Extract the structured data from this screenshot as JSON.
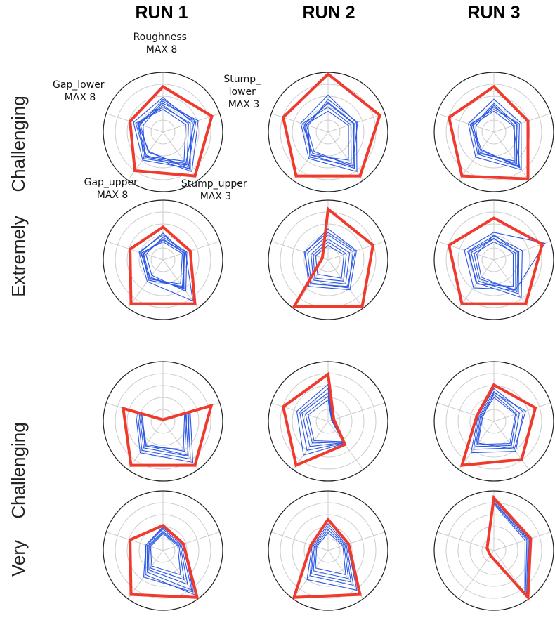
{
  "figure": {
    "columns": [
      "RUN 1",
      "RUN 2",
      "RUN 3"
    ],
    "groups": [
      {
        "word1": "Extremely",
        "word2": "Challenging"
      },
      {
        "word1": "Very",
        "word2": "Challenging"
      }
    ]
  },
  "axis_labels": [
    [
      "Roughness",
      "MAX 8"
    ],
    [
      "Stump_",
      "lower",
      "MAX 3"
    ],
    [
      "Stump_upper",
      "MAX 3"
    ],
    [
      "Gap_upper",
      "MAX 8"
    ],
    [
      "Gap_lower",
      "MAX 8"
    ]
  ],
  "colors": {
    "highlight": "#f03a2e",
    "trials": "#2b57e6",
    "grid": "#cccccc",
    "frame": "#222222"
  },
  "chart_data": {
    "type": "radar",
    "axes": [
      "Roughness",
      "Stump_lower",
      "Stump_upper",
      "Gap_upper",
      "Gap_lower"
    ],
    "max": [
      8,
      3,
      3,
      8,
      8
    ],
    "note_values": "normalized to axis maximum (0-1)",
    "panels": [
      {
        "row": 0,
        "col": 0,
        "highlight": [
          0.76,
          0.86,
          0.91,
          0.8,
          0.58
        ],
        "trials": [
          [
            0.58,
            0.52,
            0.75,
            0.58,
            0.52
          ],
          [
            0.48,
            0.62,
            0.82,
            0.48,
            0.45
          ],
          [
            0.45,
            0.45,
            0.68,
            0.55,
            0.42
          ],
          [
            0.55,
            0.58,
            0.72,
            0.42,
            0.4
          ],
          [
            0.38,
            0.4,
            0.6,
            0.5,
            0.48
          ],
          [
            0.52,
            0.55,
            0.65,
            0.52,
            0.35
          ],
          [
            0.42,
            0.48,
            0.78,
            0.4,
            0.44
          ]
        ]
      },
      {
        "row": 0,
        "col": 1,
        "highlight": [
          0.97,
          0.91,
          0.91,
          0.91,
          0.79
        ],
        "trials": [
          [
            0.62,
            0.5,
            0.82,
            0.55,
            0.48
          ],
          [
            0.48,
            0.45,
            0.75,
            0.48,
            0.42
          ],
          [
            0.55,
            0.52,
            0.7,
            0.52,
            0.35
          ],
          [
            0.42,
            0.4,
            0.66,
            0.44,
            0.45
          ],
          [
            0.35,
            0.36,
            0.58,
            0.48,
            0.4
          ],
          [
            0.5,
            0.46,
            0.72,
            0.4,
            0.38
          ]
        ]
      },
      {
        "row": 0,
        "col": 2,
        "highlight": [
          0.76,
          0.6,
          0.97,
          0.91,
          0.79
        ],
        "trials": [
          [
            0.55,
            0.48,
            0.78,
            0.52,
            0.45
          ],
          [
            0.42,
            0.42,
            0.72,
            0.46,
            0.4
          ],
          [
            0.48,
            0.4,
            0.65,
            0.42,
            0.36
          ],
          [
            0.38,
            0.45,
            0.7,
            0.38,
            0.42
          ],
          [
            0.45,
            0.36,
            0.6,
            0.44,
            0.32
          ],
          [
            0.35,
            0.34,
            0.74,
            0.36,
            0.38
          ]
        ]
      },
      {
        "row": 1,
        "col": 0,
        "highlight": [
          0.55,
          0.48,
          0.91,
          0.91,
          0.58
        ],
        "trials": [
          [
            0.42,
            0.4,
            0.85,
            0.45,
            0.42
          ],
          [
            0.35,
            0.38,
            0.55,
            0.42,
            0.35
          ],
          [
            0.45,
            0.36,
            0.6,
            0.36,
            0.4
          ],
          [
            0.3,
            0.34,
            0.5,
            0.4,
            0.38
          ],
          [
            0.38,
            0.42,
            0.65,
            0.32,
            0.3
          ],
          [
            0.33,
            0.38,
            0.58,
            0.38,
            0.34
          ]
        ]
      },
      {
        "row": 1,
        "col": 1,
        "highlight": [
          0.85,
          0.79,
          0.97,
          0.97,
          0.1
        ],
        "trials": [
          [
            0.52,
            0.5,
            0.62,
            0.55,
            0.4
          ],
          [
            0.42,
            0.44,
            0.58,
            0.48,
            0.36
          ],
          [
            0.35,
            0.38,
            0.5,
            0.42,
            0.3
          ],
          [
            0.3,
            0.32,
            0.44,
            0.38,
            0.26
          ],
          [
            0.24,
            0.28,
            0.38,
            0.3,
            0.22
          ],
          [
            0.46,
            0.48,
            0.55,
            0.5,
            0.42
          ]
        ]
      },
      {
        "row": 1,
        "col": 2,
        "highlight": [
          0.7,
          0.85,
          0.91,
          0.91,
          0.79
        ],
        "trials": [
          [
            0.46,
            0.9,
            0.62,
            0.58,
            0.52
          ],
          [
            0.4,
            0.5,
            0.78,
            0.48,
            0.46
          ],
          [
            0.35,
            0.44,
            0.7,
            0.44,
            0.4
          ],
          [
            0.3,
            0.38,
            0.62,
            0.4,
            0.35
          ],
          [
            0.42,
            0.42,
            0.66,
            0.36,
            0.3
          ],
          [
            0.36,
            0.34,
            0.55,
            0.5,
            0.44
          ]
        ]
      },
      {
        "row": 2,
        "col": 0,
        "highlight": [
          0.03,
          0.85,
          0.91,
          0.91,
          0.7
        ],
        "trials": [
          [
            0.03,
            0.48,
            0.85,
            0.65,
            0.48
          ],
          [
            0.03,
            0.44,
            0.78,
            0.6,
            0.45
          ],
          [
            0.03,
            0.4,
            0.72,
            0.55,
            0.42
          ],
          [
            0.03,
            0.46,
            0.7,
            0.5,
            0.4
          ],
          [
            0.03,
            0.42,
            0.62,
            0.48,
            0.38
          ],
          [
            0.03,
            0.38,
            0.58,
            0.52,
            0.36
          ]
        ]
      },
      {
        "row": 2,
        "col": 1,
        "highlight": [
          0.79,
          0.1,
          0.48,
          0.91,
          0.79
        ],
        "trials": [
          [
            0.62,
            0.08,
            0.46,
            0.7,
            0.55
          ],
          [
            0.55,
            0.08,
            0.45,
            0.6,
            0.5
          ],
          [
            0.48,
            0.07,
            0.44,
            0.52,
            0.46
          ],
          [
            0.42,
            0.07,
            0.43,
            0.45,
            0.4
          ],
          [
            0.36,
            0.06,
            0.42,
            0.4,
            0.35
          ]
        ]
      },
      {
        "row": 2,
        "col": 2,
        "highlight": [
          0.61,
          0.73,
          0.79,
          0.91,
          0.3
        ],
        "trials": [
          [
            0.55,
            0.52,
            0.62,
            0.65,
            0.28
          ],
          [
            0.5,
            0.45,
            0.55,
            0.58,
            0.26
          ],
          [
            0.45,
            0.4,
            0.5,
            0.52,
            0.24
          ],
          [
            0.4,
            0.38,
            0.46,
            0.48,
            0.22
          ],
          [
            0.48,
            0.56,
            0.58,
            0.45,
            0.2
          ]
        ]
      },
      {
        "row": 3,
        "col": 0,
        "highlight": [
          0.42,
          0.36,
          0.97,
          0.91,
          0.58
        ],
        "trials": [
          [
            0.4,
            0.34,
            0.92,
            0.5,
            0.3
          ],
          [
            0.36,
            0.32,
            0.82,
            0.45,
            0.28
          ],
          [
            0.32,
            0.3,
            0.7,
            0.4,
            0.26
          ],
          [
            0.3,
            0.28,
            0.6,
            0.36,
            0.24
          ],
          [
            0.28,
            0.26,
            0.5,
            0.32,
            0.22
          ],
          [
            0.38,
            0.36,
            0.86,
            0.55,
            0.3
          ]
        ]
      },
      {
        "row": 3,
        "col": 1,
        "highlight": [
          0.52,
          0.36,
          0.91,
          0.97,
          0.3
        ],
        "trials": [
          [
            0.5,
            0.34,
            0.82,
            0.6,
            0.28
          ],
          [
            0.45,
            0.32,
            0.72,
            0.52,
            0.26
          ],
          [
            0.4,
            0.3,
            0.65,
            0.48,
            0.24
          ],
          [
            0.35,
            0.28,
            0.58,
            0.42,
            0.22
          ],
          [
            0.3,
            0.26,
            0.5,
            0.36,
            0.2
          ]
        ]
      },
      {
        "row": 3,
        "col": 2,
        "highlight": [
          0.88,
          0.65,
          0.97,
          0.1,
          0.12
        ],
        "trials": [
          [
            0.85,
            0.62,
            0.95,
            0.1,
            0.12
          ],
          [
            0.82,
            0.6,
            0.93,
            0.1,
            0.12
          ],
          [
            0.8,
            0.58,
            0.9,
            0.1,
            0.12
          ],
          [
            0.78,
            0.55,
            0.88,
            0.1,
            0.12
          ]
        ]
      }
    ]
  }
}
